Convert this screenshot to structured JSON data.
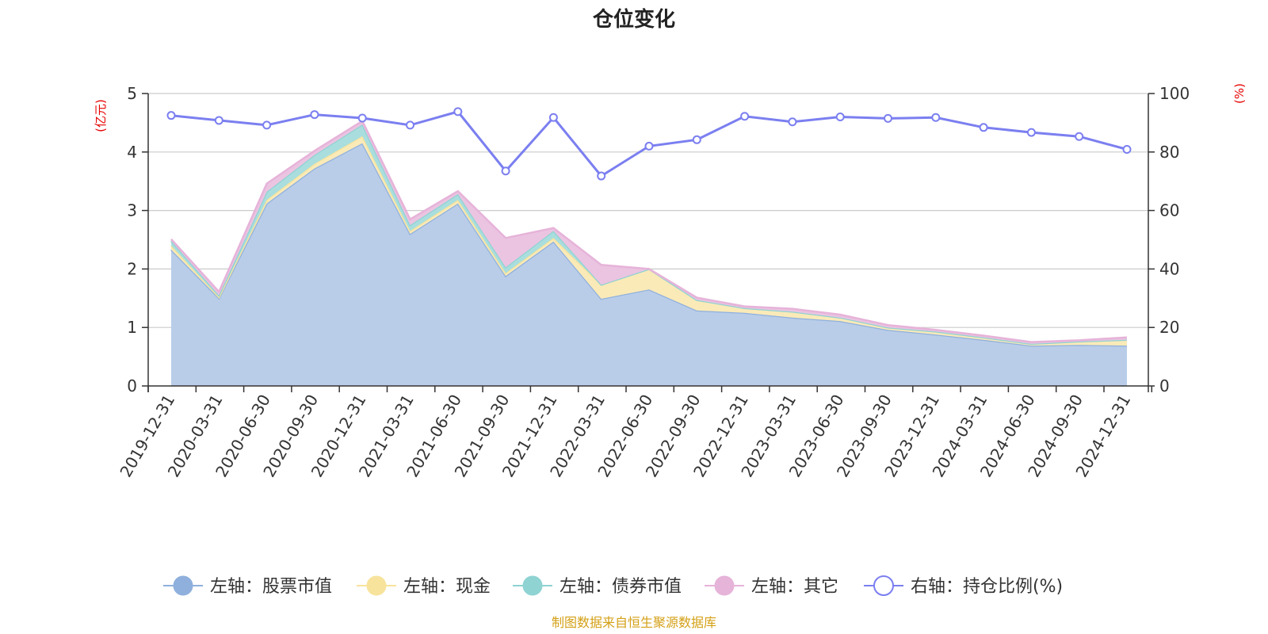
{
  "chart_data": {
    "type": "area",
    "title": "仓位变化",
    "left_axis": {
      "unit": "(亿元)",
      "ylim": [
        0,
        5
      ],
      "ticks": [
        0,
        1,
        2,
        3,
        4,
        5
      ]
    },
    "right_axis": {
      "unit": "(%)",
      "ylim": [
        0,
        100
      ],
      "ticks": [
        0,
        20,
        40,
        60,
        80,
        100
      ]
    },
    "categories": [
      "2019-12-31",
      "2020-03-31",
      "2020-06-30",
      "2020-09-30",
      "2020-12-31",
      "2021-03-31",
      "2021-06-30",
      "2021-09-30",
      "2021-12-31",
      "2022-03-31",
      "2022-06-30",
      "2022-09-30",
      "2022-12-31",
      "2023-03-31",
      "2023-06-30",
      "2023-09-30",
      "2023-12-31",
      "2024-03-31",
      "2024-06-30",
      "2024-09-30",
      "2024-12-31"
    ],
    "series": [
      {
        "name": "左轴：股票市值",
        "axis": "left",
        "kind": "stacked-area",
        "color": "#8fb0dd",
        "fill": "#b9cde9",
        "values": [
          2.33,
          1.5,
          3.12,
          3.72,
          4.15,
          2.6,
          3.12,
          1.88,
          2.47,
          1.49,
          1.65,
          1.29,
          1.25,
          1.17,
          1.11,
          0.96,
          0.88,
          0.79,
          0.69,
          0.7,
          0.69
        ]
      },
      {
        "name": "左轴：现金",
        "axis": "left",
        "kind": "stacked-area",
        "color": "#f7e39c",
        "fill": "#faeab8",
        "values": [
          0.07,
          0.02,
          0.06,
          0.08,
          0.12,
          0.05,
          0.06,
          0.05,
          0.06,
          0.24,
          0.35,
          0.18,
          0.08,
          0.1,
          0.06,
          0.04,
          0.05,
          0.04,
          0.03,
          0.06,
          0.1
        ]
      },
      {
        "name": "左轴：债券市值",
        "axis": "left",
        "kind": "stacked-area",
        "color": "#8fd3d3",
        "fill": "#aadede",
        "values": [
          0.08,
          0.03,
          0.14,
          0.15,
          0.2,
          0.1,
          0.1,
          0.1,
          0.12,
          0.0,
          0.0,
          0.0,
          0.0,
          0.0,
          0.0,
          0.0,
          0.0,
          0.0,
          0.0,
          0.0,
          0.0
        ]
      },
      {
        "name": "左轴：其它",
        "axis": "left",
        "kind": "stacked-area",
        "color": "#e6b3d9",
        "fill": "#ebc4e1",
        "values": [
          0.03,
          0.06,
          0.14,
          0.07,
          0.06,
          0.1,
          0.05,
          0.5,
          0.05,
          0.34,
          0.0,
          0.04,
          0.03,
          0.05,
          0.05,
          0.04,
          0.03,
          0.03,
          0.03,
          0.02,
          0.04
        ]
      },
      {
        "name": "右轴：持仓比例(%)",
        "axis": "right",
        "kind": "line",
        "color": "#7b7ff0",
        "values": [
          92.5,
          90.8,
          89.2,
          92.8,
          91.6,
          89.2,
          93.8,
          73.5,
          91.8,
          71.8,
          82.0,
          84.2,
          92.2,
          90.3,
          92.0,
          91.5,
          91.8,
          88.4,
          86.7,
          85.3,
          80.9
        ]
      }
    ]
  },
  "source_note": "制图数据来自恒生聚源数据库"
}
